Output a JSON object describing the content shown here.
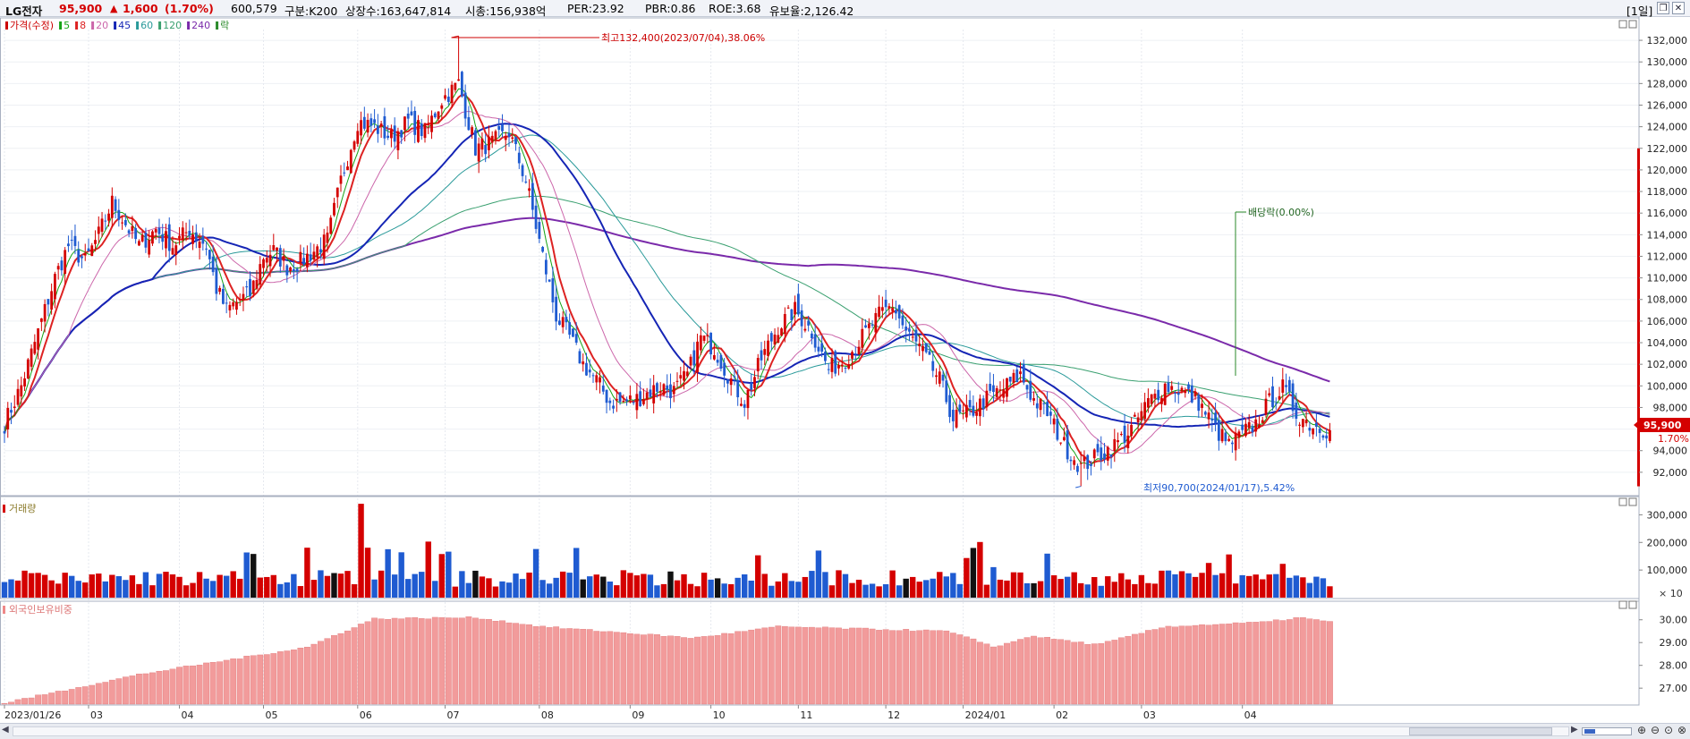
{
  "header": {
    "stock_name": "LG전자",
    "price": "95,900",
    "change_arrow": "▲",
    "change": "1,600",
    "change_pct": "(1.70%)",
    "volume": "600,579",
    "market_label": "구분:K200",
    "shares_label": "상장수:163,647,814",
    "cap_label": "시총:156,938억",
    "per_label": "PER:23.92",
    "pbr_label": "PBR:0.86",
    "roe_label": "ROE:3.68",
    "float_label": "유보율:2,126.42",
    "period_button": "[1일]",
    "colors": {
      "up": "#d40000",
      "down": "#1f5bd1",
      "text": "#1a1a1a"
    }
  },
  "price_panel": {
    "legend": [
      {
        "label": "가격(수정)",
        "color": "#cc0000"
      },
      {
        "label": "5",
        "color": "#16a316"
      },
      {
        "label": "8",
        "color": "#dd2222"
      },
      {
        "label": "20",
        "color": "#cc66aa"
      },
      {
        "label": "45",
        "color": "#1525b5"
      },
      {
        "label": "60",
        "color": "#2a9a9a"
      },
      {
        "label": "120",
        "color": "#3aa070"
      },
      {
        "label": "240",
        "color": "#7a2aaa"
      },
      {
        "label": "락",
        "color": "#2a8a2a"
      }
    ],
    "annotations": {
      "high": "최고132,400(2023/07/04),38.06%",
      "low": "최저90,700(2024/01/17),5.42%",
      "dividend": "배당락(0.00%)"
    },
    "current_price": "95,900",
    "current_pct": "1.70%"
  },
  "volume_panel": {
    "title": "거래량",
    "unit": "× 10"
  },
  "foreign_panel": {
    "title": "외국인보유비중"
  },
  "x_axis_labels": [
    "2023/01/26",
    "03",
    "04",
    "05",
    "06",
    "07",
    "08",
    "09",
    "10",
    "11",
    "12",
    "2024/01",
    "02",
    "03",
    "04"
  ],
  "chart_data": [
    {
      "type": "candlestick",
      "ylim": [
        90000,
        133000
      ],
      "yticks": [
        92000,
        94000,
        96000,
        98000,
        100000,
        102000,
        104000,
        106000,
        108000,
        110000,
        112000,
        114000,
        116000,
        118000,
        120000,
        122000,
        124000,
        126000,
        128000,
        130000,
        132000
      ],
      "tick_labels": [
        "92,000",
        "94,000",
        "96,000",
        "98,000",
        "100,000",
        "102,000",
        "104,000",
        "106,000",
        "108,000",
        "110,000",
        "112,000",
        "114,000",
        "116,000",
        "118,000",
        "120,000",
        "122,000",
        "124,000",
        "126,000",
        "128,000",
        "130,000",
        "132,000"
      ],
      "close_anchors": [
        [
          0,
          96500
        ],
        [
          5,
          100000
        ],
        [
          10,
          105000
        ],
        [
          15,
          110000
        ],
        [
          19,
          113000
        ],
        [
          24,
          111500
        ],
        [
          28,
          114000
        ],
        [
          32,
          117000
        ],
        [
          35,
          115500
        ],
        [
          40,
          113000
        ],
        [
          45,
          114500
        ],
        [
          50,
          113000
        ],
        [
          55,
          114500
        ],
        [
          60,
          113000
        ],
        [
          63,
          109000
        ],
        [
          66,
          107000
        ],
        [
          70,
          108000
        ],
        [
          73,
          108500
        ],
        [
          77,
          112000
        ],
        [
          80,
          112500
        ],
        [
          84,
          111000
        ],
        [
          88,
          111500
        ],
        [
          92,
          112500
        ],
        [
          96,
          113500
        ],
        [
          100,
          119000
        ],
        [
          105,
          124500
        ],
        [
          110,
          124000
        ],
        [
          115,
          123000
        ],
        [
          120,
          124500
        ],
        [
          125,
          123500
        ],
        [
          130,
          126500
        ],
        [
          135,
          128000
        ],
        [
          140,
          122000
        ],
        [
          145,
          122500
        ],
        [
          150,
          123500
        ],
        [
          155,
          119000
        ],
        [
          160,
          112000
        ],
        [
          164,
          106500
        ],
        [
          168,
          104500
        ],
        [
          172,
          102000
        ],
        [
          176,
          100500
        ],
        [
          180,
          98500
        ],
        [
          184,
          98500
        ],
        [
          188,
          98800
        ],
        [
          192,
          99500
        ],
        [
          195,
          100000
        ],
        [
          199,
          99500
        ],
        [
          203,
          101000
        ],
        [
          207,
          104500
        ],
        [
          211,
          103500
        ],
        [
          216,
          100500
        ],
        [
          220,
          98500
        ],
        [
          225,
          102500
        ],
        [
          230,
          105500
        ],
        [
          235,
          107000
        ],
        [
          240,
          105000
        ],
        [
          245,
          101500
        ],
        [
          250,
          102500
        ],
        [
          255,
          104500
        ],
        [
          260,
          106500
        ],
        [
          264,
          107500
        ],
        [
          268,
          105000
        ],
        [
          272,
          103500
        ],
        [
          278,
          100500
        ],
        [
          282,
          97000
        ],
        [
          287,
          97500
        ],
        [
          292,
          98800
        ],
        [
          297,
          99800
        ],
        [
          302,
          101000
        ],
        [
          306,
          98700
        ],
        [
          310,
          97500
        ],
        [
          315,
          94500
        ],
        [
          320,
          92500
        ],
        [
          325,
          93500
        ],
        [
          330,
          94500
        ],
        [
          335,
          96000
        ],
        [
          340,
          98500
        ],
        [
          345,
          100000
        ],
        [
          350,
          99600
        ],
        [
          355,
          98500
        ],
        [
          360,
          96000
        ],
        [
          364,
          94500
        ],
        [
          368,
          95500
        ],
        [
          372,
          96500
        ],
        [
          376,
          98500
        ],
        [
          380,
          99800
        ],
        [
          384,
          97500
        ],
        [
          388,
          96500
        ],
        [
          392,
          96000
        ],
        [
          394,
          95900
        ]
      ],
      "high": {
        "value": 132400,
        "date": "2023/07/04",
        "pct": 38.06
      },
      "low": {
        "value": 90700,
        "date": "2024/01/17",
        "pct": 5.42
      },
      "current": 95900,
      "moving_averages": [
        "5",
        "8",
        "20",
        "45",
        "60",
        "120",
        "240"
      ]
    },
    {
      "type": "bar",
      "name": "거래량",
      "ylim": [
        0,
        350000
      ],
      "tick_labels": [
        "100,000",
        "200,000",
        "300,000"
      ],
      "unit": "× 10"
    },
    {
      "type": "bar",
      "name": "외국인보유비중",
      "ylim": [
        26.3,
        30.5
      ],
      "tick_labels": [
        "27.00",
        "28.00",
        "29.00",
        "30.00"
      ],
      "anchors": [
        [
          0,
          26.35
        ],
        [
          40,
          27.6
        ],
        [
          90,
          28.8
        ],
        [
          110,
          30.05
        ],
        [
          140,
          30.1
        ],
        [
          160,
          29.7
        ],
        [
          205,
          29.2
        ],
        [
          230,
          29.7
        ],
        [
          280,
          29.5
        ],
        [
          295,
          28.8
        ],
        [
          305,
          29.3
        ],
        [
          325,
          28.9
        ],
        [
          345,
          29.7
        ],
        [
          375,
          29.9
        ],
        [
          385,
          30.1
        ],
        [
          394,
          29.9
        ]
      ]
    }
  ],
  "footer": {
    "zoom_icons": [
      "zoom-in-icon",
      "zoom-out-icon",
      "zoom-reset-icon",
      "zoom-fit-icon"
    ]
  }
}
